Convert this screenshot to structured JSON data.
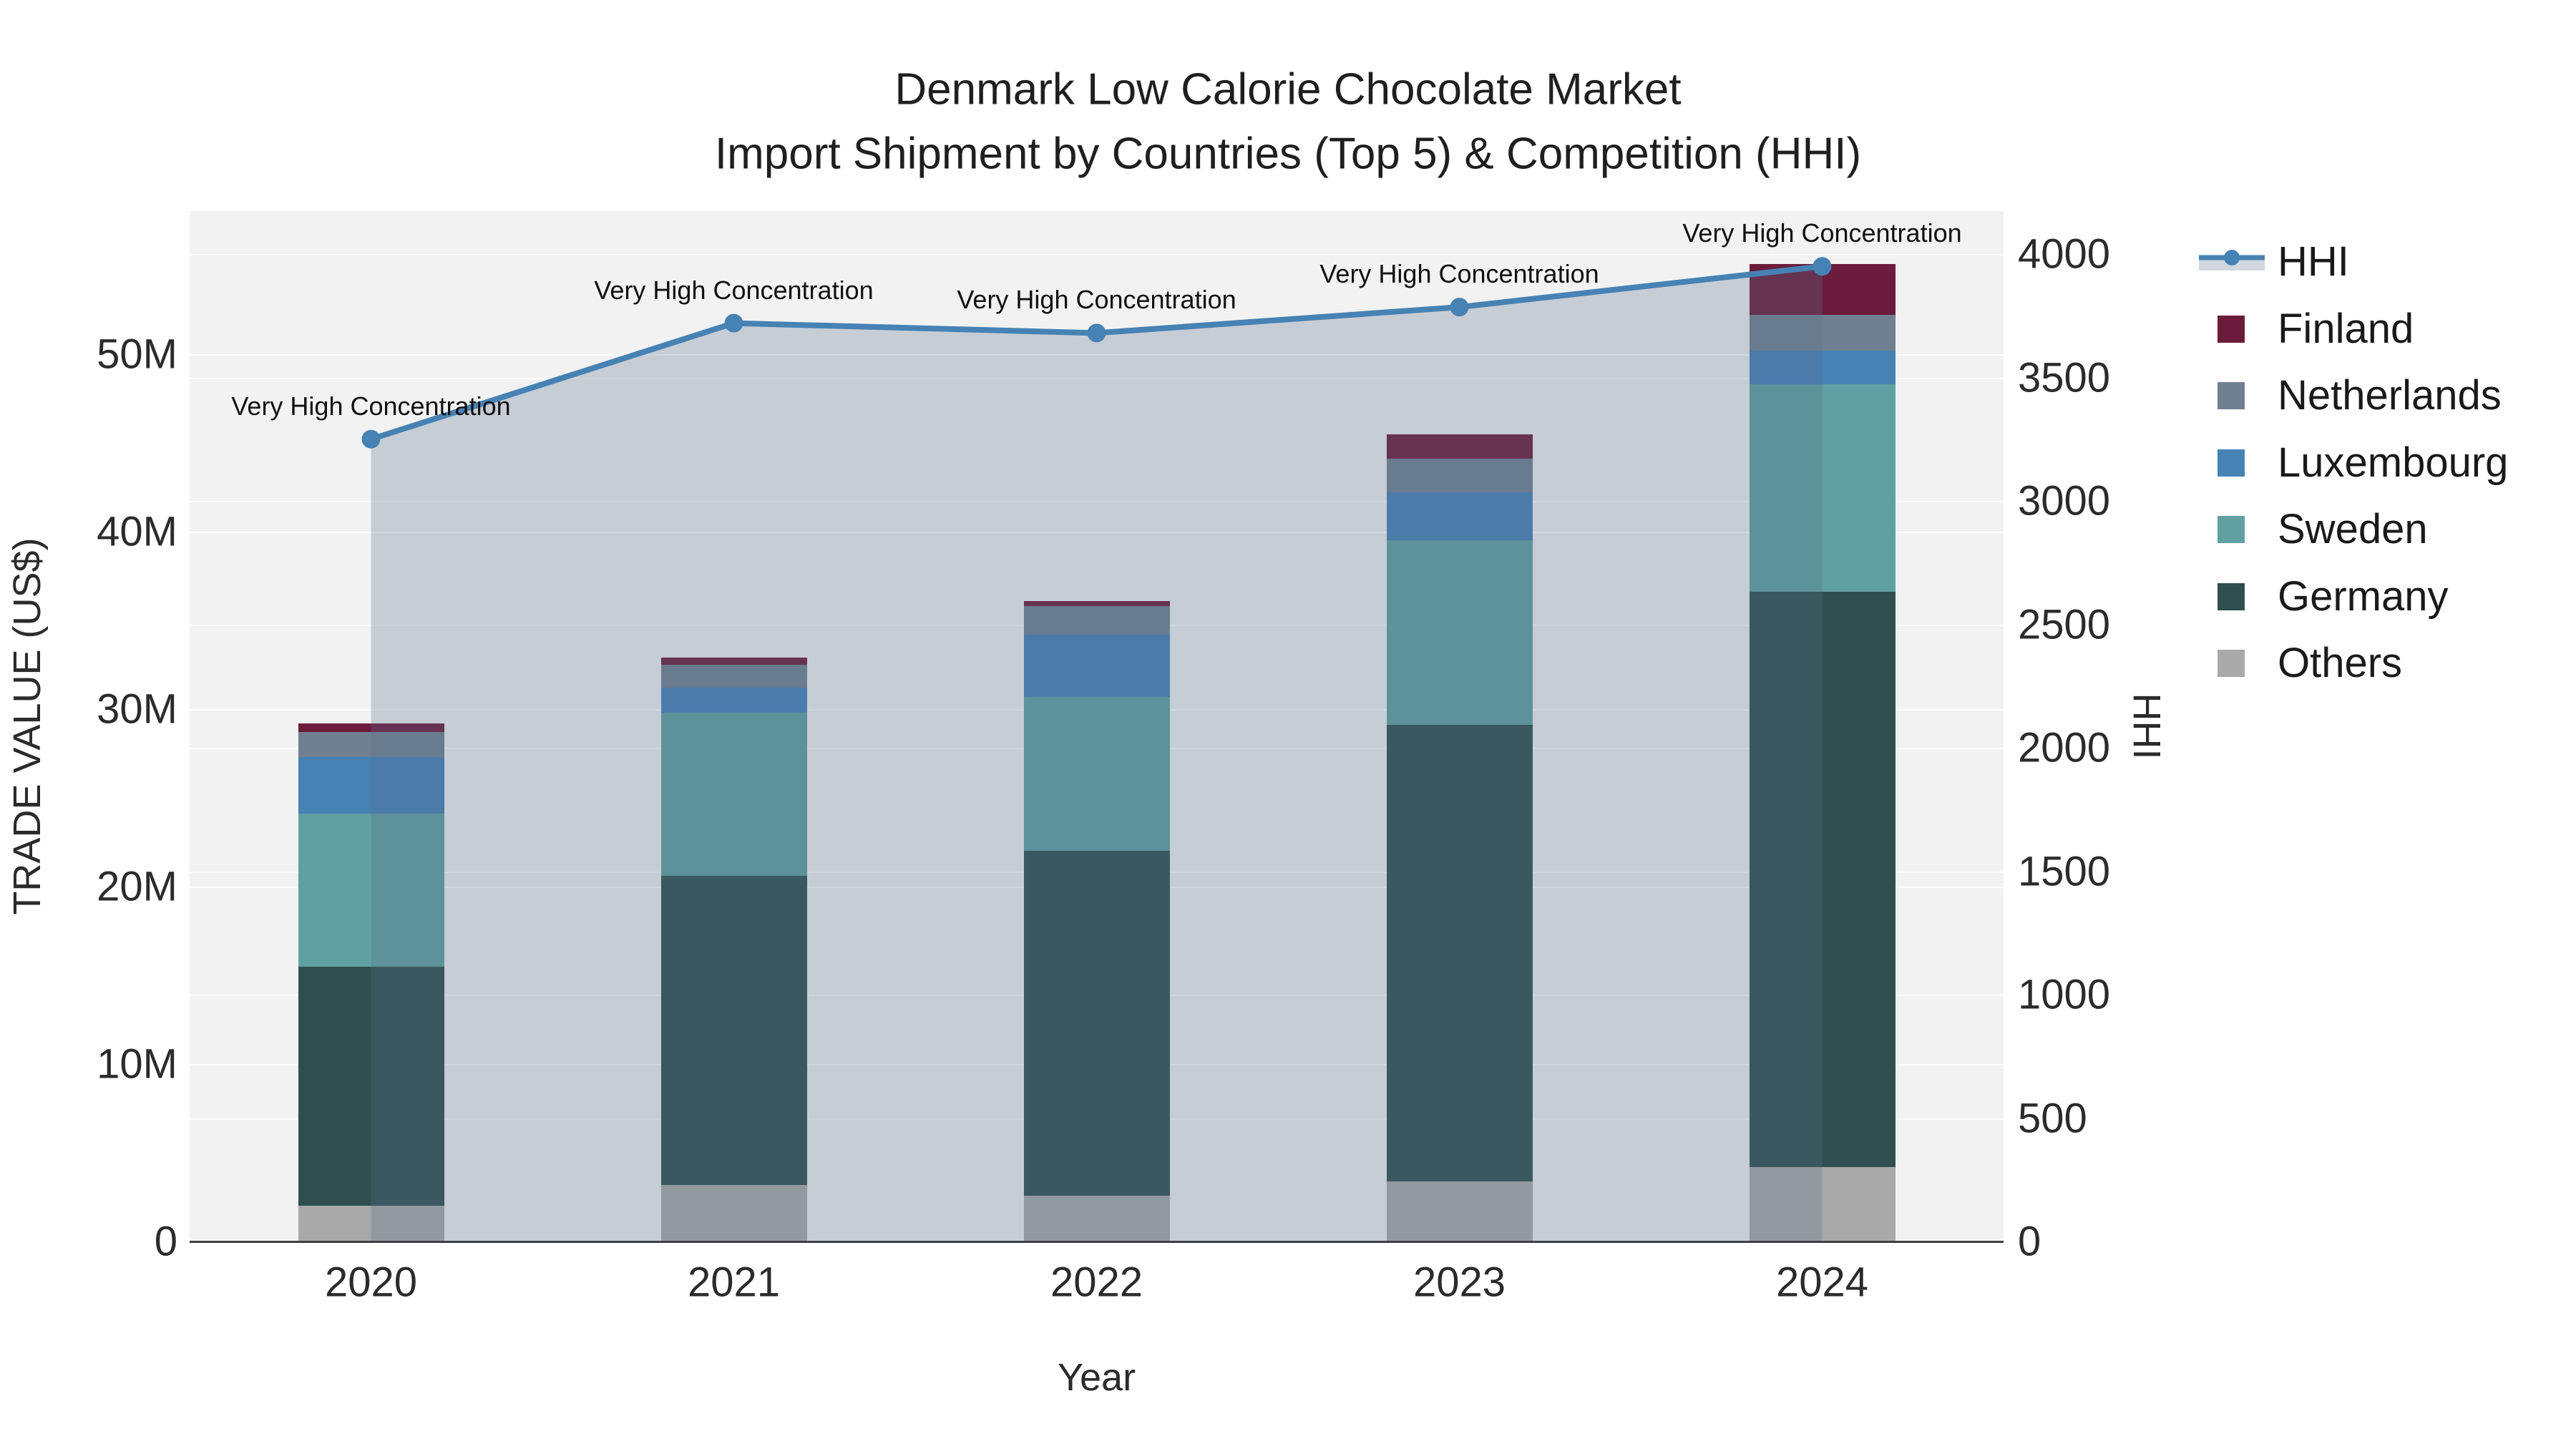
{
  "figure": {
    "title_line1": "Denmark Low Calorie Chocolate Market",
    "title_line2": "Import Shipment by Countries (Top 5) & Competition (HHI)",
    "x_axis_title": "Year",
    "y_axis_title": "TRADE VALUE (US$)",
    "y2_axis_title": "HHI"
  },
  "colors": {
    "plot_background": "#F2F2F2",
    "axis_line": "#3f3f3f",
    "hhi_line": "#4682B4",
    "hhi_fill": "rgba(90,110,140,0.28)",
    "finland": "#6B1C3B",
    "netherlands": "#708090",
    "luxembourg": "#4682B4",
    "sweden": "#60A0A0",
    "germany": "#2F4F4F",
    "others": "#A9A9A9"
  },
  "legend": {
    "items": [
      {
        "label": "HHI",
        "type": "line",
        "color": "#4682B4"
      },
      {
        "label": "Finland",
        "type": "swatch",
        "color": "#6B1C3B"
      },
      {
        "label": "Netherlands",
        "type": "swatch",
        "color": "#708090"
      },
      {
        "label": "Luxembourg",
        "type": "swatch",
        "color": "#4682B4"
      },
      {
        "label": "Sweden",
        "type": "swatch",
        "color": "#60A0A0"
      },
      {
        "label": "Germany",
        "type": "swatch",
        "color": "#2F4F4F"
      },
      {
        "label": "Others",
        "type": "swatch",
        "color": "#A9A9A9"
      }
    ]
  },
  "chart_data": {
    "type": "bar",
    "subtype": "stacked-bar-with-line",
    "title": "Denmark Low Calorie Chocolate Market — Import Shipment by Countries (Top 5) & Competition (HHI)",
    "xlabel": "Year",
    "ylabel": "TRADE VALUE (US$)",
    "y2label": "HHI",
    "categories": [
      "2020",
      "2021",
      "2022",
      "2023",
      "2024"
    ],
    "value_unit": "million US$",
    "series": [
      {
        "name": "Others",
        "color": "#A9A9A9",
        "values": [
          2.0,
          3.2,
          2.6,
          3.4,
          4.2
        ]
      },
      {
        "name": "Germany",
        "color": "#2F4F4F",
        "values": [
          13.5,
          17.4,
          19.4,
          25.7,
          32.4
        ]
      },
      {
        "name": "Sweden",
        "color": "#60A0A0",
        "values": [
          8.6,
          9.2,
          8.7,
          10.4,
          11.7
        ]
      },
      {
        "name": "Luxembourg",
        "color": "#4682B4",
        "values": [
          3.2,
          1.4,
          3.5,
          2.7,
          1.9
        ]
      },
      {
        "name": "Netherlands",
        "color": "#708090",
        "values": [
          1.4,
          1.3,
          1.6,
          1.9,
          2.0
        ]
      },
      {
        "name": "Finland",
        "color": "#6B1C3B",
        "values": [
          0.5,
          0.4,
          0.3,
          1.4,
          2.9
        ]
      }
    ],
    "line_series": {
      "name": "HHI",
      "axis": "y2",
      "color": "#4682B4",
      "fill": "tozeroy",
      "fill_color": "rgba(90,110,140,0.28)",
      "values": [
        3250,
        3720,
        3680,
        3785,
        3950
      ]
    },
    "annotations": [
      {
        "x": "2020",
        "text": "Very High Concentration"
      },
      {
        "x": "2021",
        "text": "Very High Concentration"
      },
      {
        "x": "2022",
        "text": "Very High Concentration"
      },
      {
        "x": "2023",
        "text": "Very High Concentration"
      },
      {
        "x": "2024",
        "text": "Very High Concentration"
      }
    ],
    "y_axis": {
      "tick_labels": [
        "0",
        "10M",
        "20M",
        "30M",
        "40M",
        "50M"
      ],
      "tick_values": [
        0,
        10,
        20,
        30,
        40,
        50
      ],
      "range": [
        0,
        58
      ]
    },
    "y2_axis": {
      "tick_labels": [
        "0",
        "500",
        "1000",
        "1500",
        "2000",
        "2500",
        "3000",
        "3500",
        "4000"
      ],
      "tick_values": [
        0,
        500,
        1000,
        1500,
        2000,
        2500,
        3000,
        3500,
        4000
      ],
      "range": [
        0,
        4174
      ]
    },
    "grid": true,
    "legend_position": "right"
  }
}
